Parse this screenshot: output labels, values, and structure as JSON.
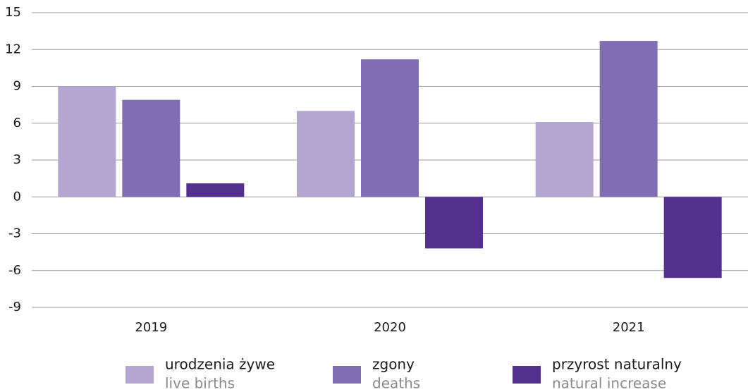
{
  "chart_data": {
    "type": "bar",
    "categories": [
      "2019",
      "2020",
      "2021"
    ],
    "series": [
      {
        "name": "urodzenia żywe",
        "name_en": "live births",
        "color": "#b3a7d2",
        "values": [
          9.0,
          7.0,
          6.1
        ]
      },
      {
        "name": "zgony",
        "name_en": "deaths",
        "color": "#816db3",
        "values": [
          7.9,
          11.2,
          12.7
        ]
      },
      {
        "name": "przyrost naturalny",
        "name_en": "natural increase",
        "color": "#532f90",
        "values": [
          1.1,
          -4.2,
          -6.6
        ]
      }
    ],
    "ylim": [
      -9,
      15
    ],
    "yticks": [
      -9,
      -6,
      -3,
      0,
      3,
      6,
      9,
      12,
      15
    ],
    "grid": true,
    "legend": "bottom"
  }
}
